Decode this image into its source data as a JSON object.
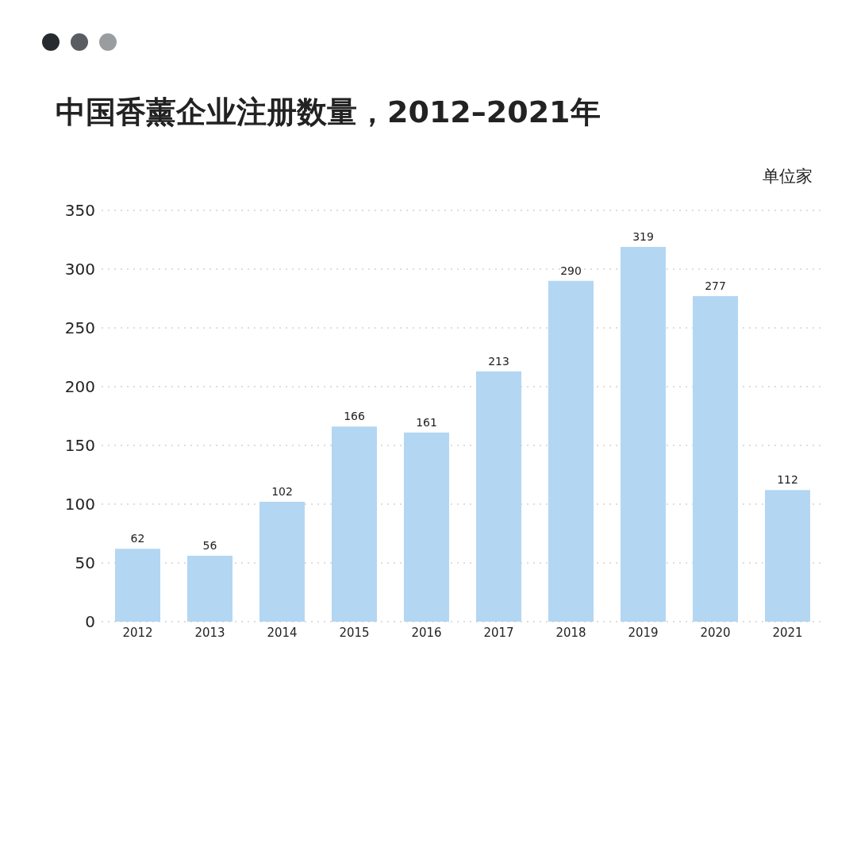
{
  "chart_data": {
    "type": "bar",
    "title": "中国香薰企业注册数量，2012–2021年",
    "ylabel": "单位家",
    "categories": [
      "2012",
      "2013",
      "2014",
      "2015",
      "2016",
      "2017",
      "2018",
      "2019",
      "2020",
      "2021"
    ],
    "values": [
      62,
      56,
      102,
      166,
      161,
      213,
      290,
      319,
      277,
      112
    ],
    "color": "#b3d6f3",
    "ylim": [
      0,
      350
    ],
    "yticks": [
      0,
      50,
      100,
      150,
      200,
      250,
      300,
      350
    ],
    "grid": "y",
    "data_labels": true
  }
}
